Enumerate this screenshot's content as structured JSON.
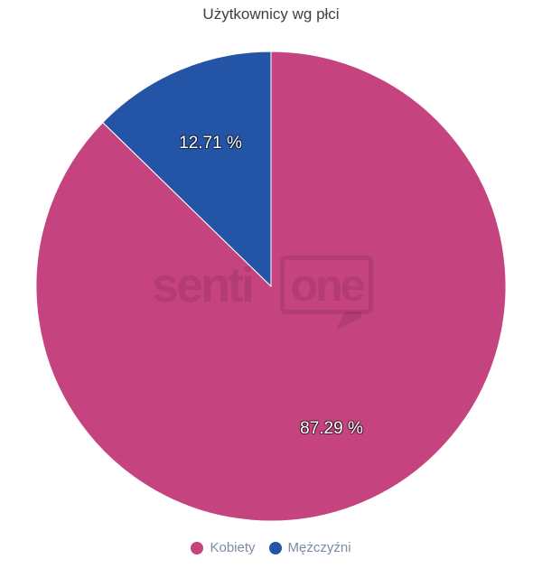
{
  "chart_data": {
    "type": "pie",
    "title": "Użytkownicy wg płci",
    "series": [
      {
        "key": "kobiety",
        "name": "Kobiety",
        "value": 87.29,
        "label": "87.29 %",
        "color": "#C5437F"
      },
      {
        "key": "mezczyzni",
        "name": "Mężczyźni",
        "value": 12.71,
        "label": "12.71 %",
        "color": "#2454A5"
      }
    ],
    "total": 100,
    "start_angle_deg": 0,
    "direction": "clockwise",
    "slice_border_color": "#FFFFFF",
    "label_text_color": "#FFFFFF",
    "legend_position": "bottom",
    "watermark": {
      "text_left": "senti",
      "text_boxed": "one"
    }
  }
}
